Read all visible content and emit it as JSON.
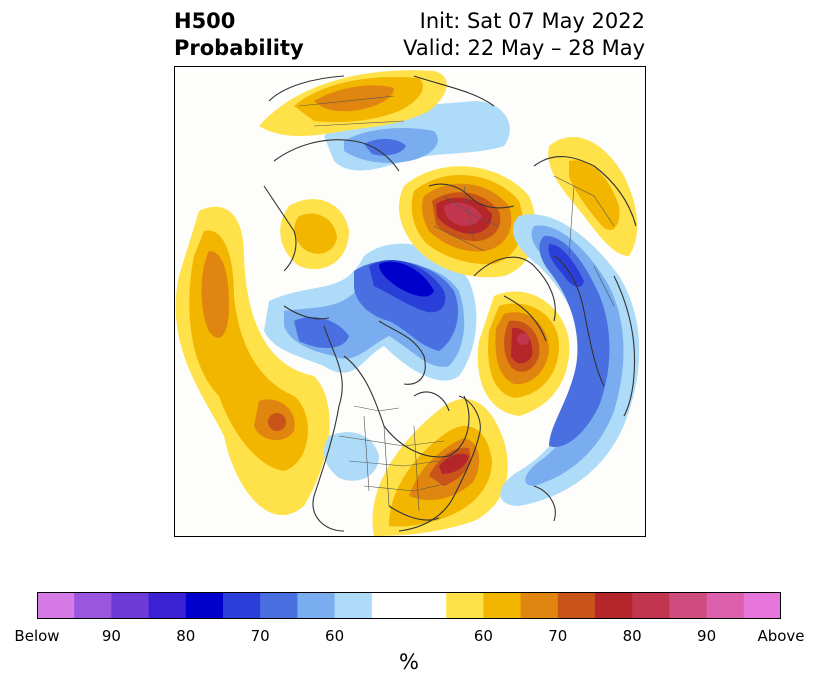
{
  "header": {
    "variable": "H500",
    "product": "Probability",
    "init": "Init: Sat 07 May 2022",
    "valid": "Valid: 22 May – 28 May"
  },
  "map": {
    "projection": "north polar stereographic",
    "features": [
      {
        "name": "negative-anomaly-arctic",
        "category": "Below",
        "level": "80-90"
      },
      {
        "name": "positive-anomaly-north-america-east",
        "category": "Above",
        "level": "80-90"
      },
      {
        "name": "positive-anomaly-north-atlantic",
        "category": "Above",
        "level": "80-90"
      },
      {
        "name": "positive-anomaly-europe",
        "category": "Above",
        "level": "80-90"
      },
      {
        "name": "positive-anomaly-north-pacific",
        "category": "Above",
        "level": "70-80"
      },
      {
        "name": "negative-anomaly-eurasia",
        "category": "Below",
        "level": "60-70"
      },
      {
        "name": "negative-anomaly-east-asia",
        "category": "Below",
        "level": "70-80"
      }
    ]
  },
  "colorbar": {
    "colors": [
      "#d67ae8",
      "#9b56e0",
      "#6e3ad8",
      "#3b21d4",
      "#0000cc",
      "#2a3fd9",
      "#4a6fe0",
      "#79adf0",
      "#aedbf8",
      "#ffffff",
      "#ffffff",
      "#ffe14a",
      "#f2b600",
      "#e0850f",
      "#c95419",
      "#b4262a",
      "#c2364f",
      "#cf4c7e",
      "#dd60ac",
      "#e676dc"
    ],
    "ticks": [
      "Below",
      "90",
      "80",
      "70",
      "60",
      "60",
      "70",
      "80",
      "90",
      "Above"
    ],
    "unit": "%"
  }
}
